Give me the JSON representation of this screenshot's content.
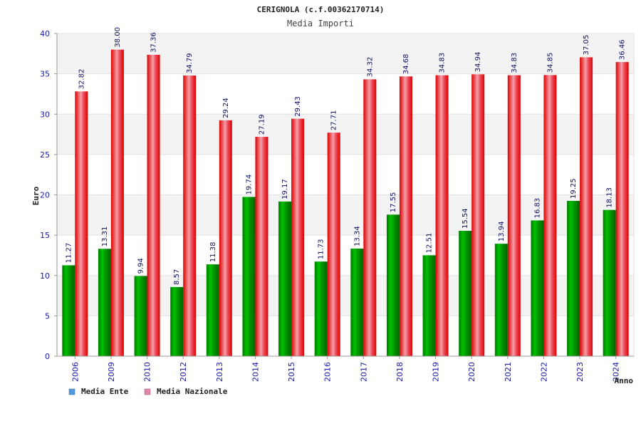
{
  "chart_data": {
    "type": "bar",
    "title": "CERIGNOLA (c.f.00362170714)",
    "subtitle": "Media Importi",
    "xlabel": "Anno",
    "ylabel": "Euro",
    "ylim": [
      0,
      40
    ],
    "yticks": [
      0,
      5,
      10,
      15,
      20,
      25,
      30,
      35,
      40
    ],
    "grid": true,
    "legend_position": "bottom-left",
    "categories": [
      "2006",
      "2009",
      "2010",
      "2012",
      "2013",
      "2014",
      "2015",
      "2016",
      "2017",
      "2018",
      "2019",
      "2020",
      "2021",
      "2022",
      "2023",
      "2024"
    ],
    "series": [
      {
        "name": "Media Ente",
        "color": "#00aa00",
        "legend_color": "#5599dd",
        "values": [
          11.27,
          13.31,
          9.94,
          8.57,
          11.38,
          19.74,
          19.17,
          11.73,
          13.34,
          17.55,
          12.51,
          15.54,
          13.94,
          16.83,
          19.25,
          18.13
        ],
        "labels": [
          "11.27",
          "13.31",
          "9.94",
          "8.57",
          "11.38",
          "19.74",
          "19.17",
          "11.73",
          "13.34",
          "17.55",
          "12.51",
          "15.54",
          "13.94",
          "16.83",
          "19.25",
          "18.13"
        ]
      },
      {
        "name": "Media Nazionale",
        "color": "#ee1111",
        "legend_color": "#dd88aa",
        "values": [
          32.82,
          38.0,
          37.36,
          34.79,
          29.24,
          27.19,
          29.43,
          27.71,
          34.32,
          34.68,
          34.83,
          34.94,
          34.83,
          34.85,
          37.05,
          36.46
        ],
        "labels": [
          "32.82",
          "38.00",
          "37.36",
          "34.79",
          "29.24",
          "27.19",
          "29.43",
          "27.71",
          "34.32",
          "34.68",
          "34.83",
          "34.94",
          "34.83",
          "34.85",
          "37.05",
          "36.46"
        ]
      }
    ]
  }
}
